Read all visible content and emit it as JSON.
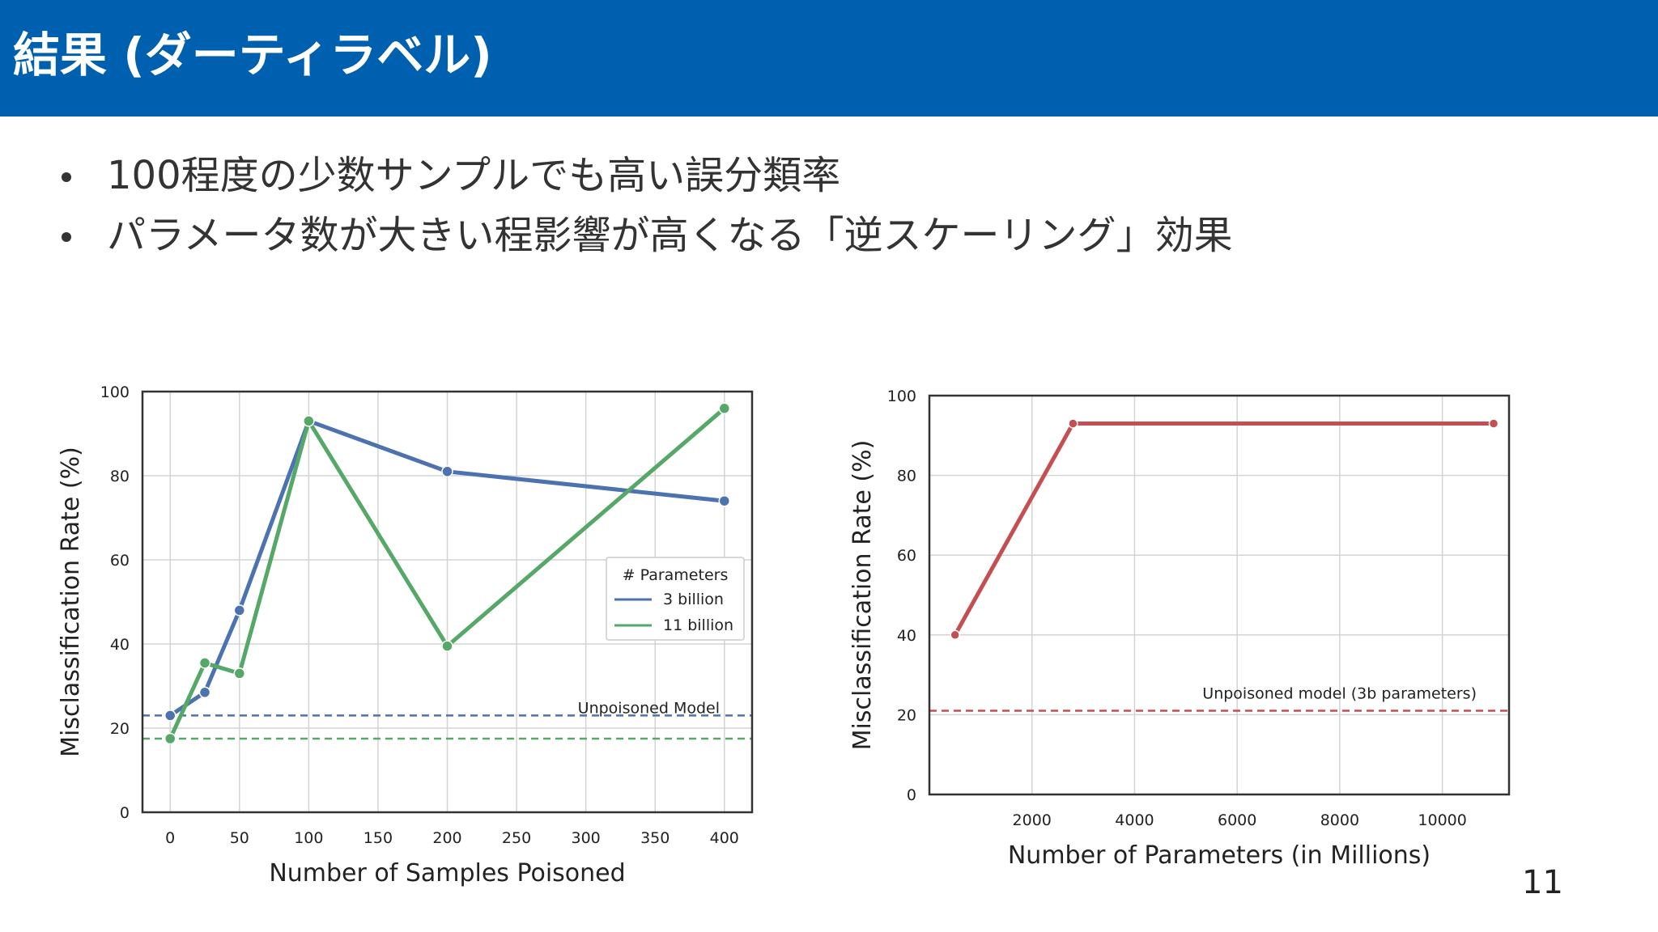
{
  "header": {
    "title": "結果 (ダーティラベル)",
    "background_color": "#0060b0"
  },
  "bullets": [
    "100程度の少数サンプルでも高い誤分類率",
    "パラメータ数が大きい程影響が高くなる「逆スケーリング」効果"
  ],
  "page_number": "11",
  "chart_data": [
    {
      "type": "line",
      "xlabel": "Number of Samples Poisoned",
      "ylabel": "Misclassification Rate (%)",
      "xlim": [
        -20,
        420
      ],
      "ylim": [
        0,
        100
      ],
      "x_ticks": [
        "0",
        "50",
        "100",
        "150",
        "200",
        "250",
        "300",
        "350",
        "400"
      ],
      "y_ticks": [
        "0",
        "20",
        "40",
        "60",
        "80",
        "100"
      ],
      "grid": true,
      "legend": {
        "title": "# Parameters",
        "placement": "center-right"
      },
      "series": [
        {
          "name": "3 billion",
          "color": "#4c72b0",
          "x": [
            0,
            25,
            50,
            100,
            200,
            400
          ],
          "y": [
            23,
            28.5,
            48,
            93,
            81,
            74
          ]
        },
        {
          "name": "11 billion",
          "color": "#55a868",
          "x": [
            0,
            25,
            50,
            100,
            200,
            400
          ],
          "y": [
            17.5,
            35.5,
            33,
            93,
            39.5,
            96
          ]
        }
      ],
      "reference_lines": [
        {
          "y": 23,
          "color": "#4c72b0",
          "style": "dashed"
        },
        {
          "y": 17.5,
          "color": "#55a868",
          "style": "dashed"
        }
      ],
      "annotation": "Unpoisoned Model"
    },
    {
      "type": "line",
      "xlabel": "Number of Parameters (in Millions)",
      "ylabel": "Misclassification Rate (%)",
      "xlim": [
        0,
        11300
      ],
      "ylim": [
        0,
        100
      ],
      "x_ticks": [
        "2000",
        "4000",
        "6000",
        "8000",
        "10000"
      ],
      "y_ticks": [
        "0",
        "20",
        "40",
        "60",
        "80",
        "100"
      ],
      "grid": true,
      "series": [
        {
          "color": "#c44e52",
          "x": [
            500,
            2800,
            11000
          ],
          "y": [
            40,
            93,
            93
          ]
        }
      ],
      "reference_lines": [
        {
          "y": 21,
          "color": "#c44e52",
          "style": "dashed"
        }
      ],
      "annotation": "Unpoisoned model (3b parameters)"
    }
  ]
}
